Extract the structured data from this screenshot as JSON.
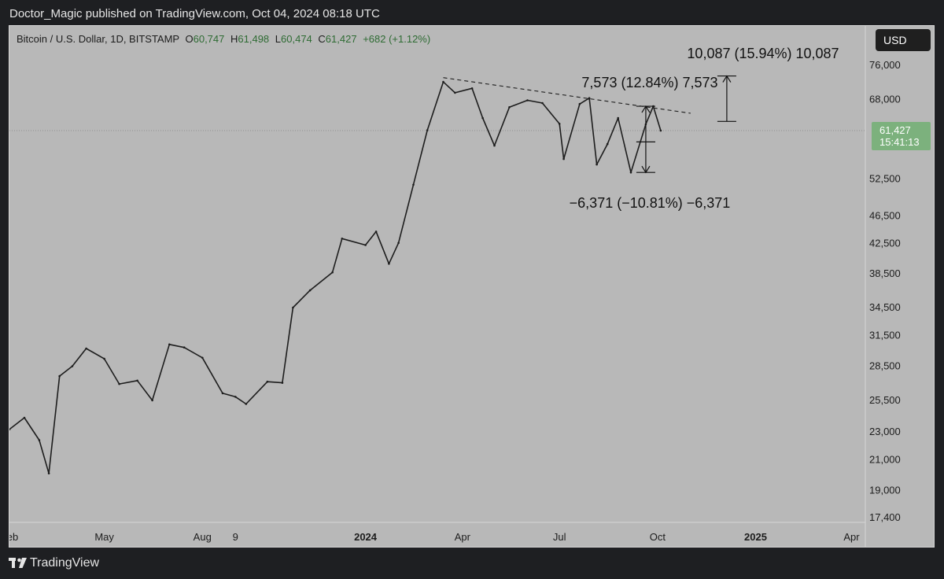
{
  "header": {
    "publisher": "Doctor_Magic published on TradingView.com, Oct 04, 2024 08:18 UTC"
  },
  "legend": {
    "symbol": "Bitcoin / U.S. Dollar, 1D, BITSTAMP",
    "o_label": "O",
    "o_value": "60,747",
    "h_label": "H",
    "h_value": "61,498",
    "l_label": "L",
    "l_value": "60,474",
    "c_label": "C",
    "c_value": "61,427",
    "change": "+682 (+1.12%)"
  },
  "currency_button": "USD",
  "price_badge": {
    "price": "61,427",
    "countdown": "15:41:13"
  },
  "measurements": {
    "up_right": "10,087 (15.94%) 10,087",
    "up_middle": "7,573 (12.84%) 7,573",
    "down": "−6,371 (−10.81%) −6,371"
  },
  "footer": {
    "brand": "TradingView"
  },
  "chart_data": {
    "type": "line",
    "y_scale": "log",
    "ylim": [
      16800,
      80000
    ],
    "y_ticks": [
      "76,000",
      "68,000",
      "52,500",
      "46,500",
      "42,500",
      "38,500",
      "34,500",
      "31,500",
      "28,500",
      "25,500",
      "23,000",
      "21,000",
      "19,000",
      "17,400"
    ],
    "x_ticks": [
      "Feb",
      "May",
      "Aug",
      "9",
      "2024",
      "Apr",
      "Jul",
      "Oct",
      "2025",
      "Apr"
    ],
    "series": [
      {
        "x": [
          "2023-02-01",
          "2023-02-15",
          "2023-03-01",
          "2023-03-10",
          "2023-03-20",
          "2023-04-01",
          "2023-04-14",
          "2023-05-01",
          "2023-05-15",
          "2023-06-01",
          "2023-06-15",
          "2023-07-01",
          "2023-07-15",
          "2023-08-01",
          "2023-08-20",
          "2023-09-01",
          "2023-09-11",
          "2023-10-01",
          "2023-10-15",
          "2023-10-25",
          "2023-11-10",
          "2023-12-01",
          "2023-12-10",
          "2024-01-01",
          "2024-01-11",
          "2024-01-23",
          "2024-02-01",
          "2024-02-15",
          "2024-02-28",
          "2024-03-14",
          "2024-03-25",
          "2024-04-10",
          "2024-04-20",
          "2024-05-01",
          "2024-05-15",
          "2024-06-01",
          "2024-06-15",
          "2024-07-01",
          "2024-07-05",
          "2024-07-20",
          "2024-07-29",
          "2024-08-05",
          "2024-08-15",
          "2024-08-25",
          "2024-09-06",
          "2024-09-20",
          "2024-09-27",
          "2024-10-04"
        ],
        "y": [
          23200,
          24100,
          22400,
          20100,
          27600,
          28500,
          30200,
          29200,
          26900,
          27200,
          25500,
          30600,
          30300,
          29300,
          26100,
          25800,
          25200,
          27100,
          27000,
          34500,
          36500,
          38700,
          43200,
          42300,
          44200,
          39800,
          42600,
          51500,
          61500,
          72000,
          69500,
          70500,
          64000,
          58500,
          66300,
          67800,
          67200,
          62800,
          56000,
          67000,
          68300,
          55000,
          58800,
          64000,
          53600,
          62700,
          66500,
          61427
        ]
      }
    ],
    "annotations": {
      "trendline": {
        "from": [
          "2024-03-14",
          73000
        ],
        "to": [
          "2024-11-01",
          65000
        ],
        "style": "dashed"
      },
      "range_up_middle": {
        "x": "2024-09-20",
        "low": 59200,
        "high": 66500
      },
      "range_down": {
        "x": "2024-09-20",
        "low": 53600,
        "high": 59200
      },
      "range_up_right": {
        "x": "2024-12-05",
        "low": 63300,
        "high": 73400
      }
    }
  }
}
